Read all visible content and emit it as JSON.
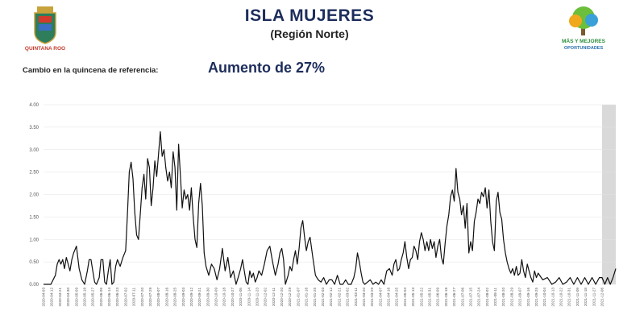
{
  "header": {
    "title": "ISLA MUJERES",
    "subtitle": "(Región Norte)",
    "change_label": "Cambio en la quincena de referencia:",
    "change_value": "Aumento de 27%",
    "logo_left_text": "QUINTANA ROO",
    "logo_right_line1": "MÁS Y MEJORES",
    "logo_right_line2": "OPORTUNIDADES"
  },
  "colors": {
    "title": "#1d2d5c",
    "line": "#111111",
    "grid": "#e3e3e3",
    "highlight": "#d9d9d9"
  },
  "chart_data": {
    "type": "line",
    "title": "",
    "xlabel": "",
    "ylabel": "",
    "ylim": [
      0,
      4
    ],
    "yticks": [
      "0.00",
      "0.50",
      "1.00",
      "1.50",
      "2.00",
      "2.50",
      "3.00",
      "3.50",
      "4.00"
    ],
    "grid": true,
    "x_start": "2020-04-03",
    "x_end": "2021-12-21",
    "x_ticks": [
      "2020-04-03",
      "2020-04-12",
      "2020-04-21",
      "2020-04-30",
      "2020-05-09",
      "2020-05-18",
      "2020-05-27",
      "2020-06-05",
      "2020-06-14",
      "2020-06-23",
      "2020-07-02",
      "2020-07-11",
      "2020-07-20",
      "2020-07-29",
      "2020-08-07",
      "2020-08-16",
      "2020-08-25",
      "2020-09-03",
      "2020-09-12",
      "2020-09-21",
      "2020-09-30",
      "2020-10-09",
      "2020-10-18",
      "2020-10-27",
      "2020-11-05",
      "2020-11-14",
      "2020-11-23",
      "2020-12-02",
      "2020-12-11",
      "2020-12-20",
      "2020-12-29",
      "2021-01-07",
      "2021-01-16",
      "2021-01-25",
      "2021-02-03",
      "2021-02-12",
      "2021-02-21",
      "2021-03-02",
      "2021-03-11",
      "2021-03-20",
      "2021-03-29",
      "2021-04-07",
      "2021-04-16",
      "2021-04-25",
      "2021-05-04",
      "2021-05-13",
      "2021-05-22",
      "2021-05-31",
      "2021-06-09",
      "2021-06-18",
      "2021-06-27",
      "2021-07-06",
      "2021-07-15",
      "2021-07-24",
      "2021-08-02",
      "2021-08-11",
      "2021-08-20",
      "2021-08-29",
      "2021-09-07",
      "2021-09-16",
      "2021-09-25",
      "2021-10-04",
      "2021-10-13",
      "2021-10-22",
      "2021-10-31",
      "2021-11-09",
      "2021-11-18",
      "2021-11-27",
      "2021-12-06"
    ],
    "highlight_range": [
      "2021-12-06",
      "2021-12-21"
    ],
    "series": [
      {
        "x": [
          "2020-04-03",
          "2020-04-11",
          "2020-04-16",
          "2020-04-18",
          "2020-04-20",
          "2020-04-22",
          "2020-04-24",
          "2020-04-26",
          "2020-04-28",
          "2020-04-30",
          "2020-05-02",
          "2020-05-04",
          "2020-05-06",
          "2020-05-09",
          "2020-05-12",
          "2020-05-15",
          "2020-05-18",
          "2020-05-21",
          "2020-05-23",
          "2020-05-25",
          "2020-05-27",
          "2020-05-29",
          "2020-05-31",
          "2020-06-03",
          "2020-06-05",
          "2020-06-07",
          "2020-06-09",
          "2020-06-11",
          "2020-06-13",
          "2020-06-15",
          "2020-06-17",
          "2020-06-19",
          "2020-06-21",
          "2020-06-23",
          "2020-06-26",
          "2020-06-29",
          "2020-07-02",
          "2020-07-04",
          "2020-07-06",
          "2020-07-08",
          "2020-07-10",
          "2020-07-12",
          "2020-07-14",
          "2020-07-16",
          "2020-07-18",
          "2020-07-20",
          "2020-07-22",
          "2020-07-24",
          "2020-07-26",
          "2020-07-28",
          "2020-07-30",
          "2020-08-01",
          "2020-08-03",
          "2020-08-05",
          "2020-08-07",
          "2020-08-09",
          "2020-08-11",
          "2020-08-13",
          "2020-08-15",
          "2020-08-17",
          "2020-08-19",
          "2020-08-21",
          "2020-08-23",
          "2020-08-25",
          "2020-08-27",
          "2020-08-29",
          "2020-08-31",
          "2020-09-02",
          "2020-09-04",
          "2020-09-06",
          "2020-09-08",
          "2020-09-10",
          "2020-09-12",
          "2020-09-14",
          "2020-09-16",
          "2020-09-18",
          "2020-09-20",
          "2020-09-22",
          "2020-09-24",
          "2020-09-26",
          "2020-09-28",
          "2020-10-01",
          "2020-10-04",
          "2020-10-07",
          "2020-10-10",
          "2020-10-13",
          "2020-10-16",
          "2020-10-19",
          "2020-10-22",
          "2020-10-25",
          "2020-10-28",
          "2020-10-31",
          "2020-11-03",
          "2020-11-05",
          "2020-11-07",
          "2020-11-09",
          "2020-11-11",
          "2020-11-13",
          "2020-11-15",
          "2020-11-17",
          "2020-11-19",
          "2020-11-21",
          "2020-11-23",
          "2020-11-25",
          "2020-11-28",
          "2020-12-01",
          "2020-12-04",
          "2020-12-07",
          "2020-12-10",
          "2020-12-13",
          "2020-12-16",
          "2020-12-18",
          "2020-12-20",
          "2020-12-22",
          "2020-12-24",
          "2020-12-27",
          "2020-12-29",
          "2020-12-31",
          "2021-01-02",
          "2021-01-04",
          "2021-01-06",
          "2021-01-08",
          "2021-01-10",
          "2021-01-12",
          "2021-01-14",
          "2021-01-16",
          "2021-01-18",
          "2021-01-20",
          "2021-01-23",
          "2021-01-26",
          "2021-01-29",
          "2021-02-01",
          "2021-02-04",
          "2021-02-07",
          "2021-02-10",
          "2021-02-13",
          "2021-02-16",
          "2021-02-19",
          "2021-02-22",
          "2021-02-25",
          "2021-02-28",
          "2021-03-03",
          "2021-03-06",
          "2021-03-09",
          "2021-03-11",
          "2021-03-13",
          "2021-03-15",
          "2021-03-17",
          "2021-03-19",
          "2021-03-21",
          "2021-03-24",
          "2021-03-27",
          "2021-03-30",
          "2021-04-02",
          "2021-04-05",
          "2021-04-08",
          "2021-04-11",
          "2021-04-14",
          "2021-04-17",
          "2021-04-20",
          "2021-04-22",
          "2021-04-24",
          "2021-04-26",
          "2021-04-28",
          "2021-04-30",
          "2021-05-02",
          "2021-05-04",
          "2021-05-06",
          "2021-05-08",
          "2021-05-10",
          "2021-05-12",
          "2021-05-14",
          "2021-05-16",
          "2021-05-18",
          "2021-05-20",
          "2021-05-22",
          "2021-05-24",
          "2021-05-26",
          "2021-05-28",
          "2021-05-30",
          "2021-06-01",
          "2021-06-03",
          "2021-06-05",
          "2021-06-07",
          "2021-06-09",
          "2021-06-11",
          "2021-06-13",
          "2021-06-15",
          "2021-06-17",
          "2021-06-19",
          "2021-06-21",
          "2021-06-23",
          "2021-06-25",
          "2021-06-27",
          "2021-06-29",
          "2021-07-01",
          "2021-07-03",
          "2021-07-05",
          "2021-07-07",
          "2021-07-09",
          "2021-07-11",
          "2021-07-13",
          "2021-07-15",
          "2021-07-17",
          "2021-07-19",
          "2021-07-21",
          "2021-07-23",
          "2021-07-25",
          "2021-07-27",
          "2021-07-29",
          "2021-07-31",
          "2021-08-02",
          "2021-08-04",
          "2021-08-06",
          "2021-08-08",
          "2021-08-10",
          "2021-08-12",
          "2021-08-14",
          "2021-08-16",
          "2021-08-18",
          "2021-08-20",
          "2021-08-22",
          "2021-08-24",
          "2021-08-26",
          "2021-08-28",
          "2021-08-30",
          "2021-09-01",
          "2021-09-03",
          "2021-09-05",
          "2021-09-07",
          "2021-09-09",
          "2021-09-11",
          "2021-09-13",
          "2021-09-15",
          "2021-09-17",
          "2021-09-19",
          "2021-09-21",
          "2021-09-23",
          "2021-09-25",
          "2021-09-27",
          "2021-10-02",
          "2021-10-07",
          "2021-10-12",
          "2021-10-16",
          "2021-10-20",
          "2021-10-24",
          "2021-10-28",
          "2021-11-01",
          "2021-11-05",
          "2021-11-09",
          "2021-11-13",
          "2021-11-17",
          "2021-11-21",
          "2021-11-25",
          "2021-11-29",
          "2021-12-03",
          "2021-12-06",
          "2021-12-09",
          "2021-12-12",
          "2021-12-15",
          "2021-12-18",
          "2021-12-21"
        ],
        "y": [
          0.0,
          0.0,
          0.2,
          0.45,
          0.55,
          0.45,
          0.55,
          0.35,
          0.6,
          0.45,
          0.3,
          0.55,
          0.7,
          0.85,
          0.35,
          0.1,
          0.0,
          0.3,
          0.55,
          0.55,
          0.3,
          0.05,
          0.0,
          0.15,
          0.55,
          0.55,
          0.05,
          0.0,
          0.3,
          0.55,
          0.0,
          0.05,
          0.4,
          0.55,
          0.4,
          0.6,
          0.75,
          1.6,
          2.5,
          2.72,
          2.35,
          1.6,
          1.1,
          1.0,
          1.55,
          2.15,
          2.45,
          1.9,
          2.8,
          2.6,
          1.75,
          2.15,
          2.75,
          2.4,
          2.9,
          3.4,
          2.85,
          3.0,
          2.6,
          2.3,
          2.5,
          2.15,
          2.95,
          2.6,
          1.65,
          3.12,
          2.4,
          1.7,
          2.1,
          1.9,
          2.0,
          1.65,
          2.15,
          1.5,
          1.0,
          0.82,
          1.8,
          2.25,
          1.75,
          0.7,
          0.4,
          0.2,
          0.45,
          0.35,
          0.1,
          0.35,
          0.8,
          0.3,
          0.6,
          0.15,
          0.3,
          0.0,
          0.2,
          0.35,
          0.55,
          0.3,
          0.05,
          0.0,
          0.3,
          0.15,
          0.25,
          0.05,
          0.15,
          0.3,
          0.2,
          0.45,
          0.75,
          0.85,
          0.5,
          0.2,
          0.45,
          0.7,
          0.8,
          0.55,
          0.0,
          0.2,
          0.4,
          0.3,
          0.55,
          0.75,
          0.45,
          0.8,
          1.25,
          1.42,
          1.05,
          0.75,
          0.95,
          1.05,
          0.6,
          0.2,
          0.1,
          0.05,
          0.15,
          0.0,
          0.1,
          0.1,
          0.0,
          0.2,
          0.0,
          0.0,
          0.1,
          0.0,
          0.0,
          0.15,
          0.35,
          0.7,
          0.5,
          0.25,
          0.05,
          0.0,
          0.05,
          0.1,
          0.0,
          0.05,
          0.0,
          0.1,
          0.0,
          0.3,
          0.35,
          0.2,
          0.45,
          0.55,
          0.3,
          0.35,
          0.55,
          0.7,
          0.95,
          0.6,
          0.35,
          0.55,
          0.6,
          0.85,
          0.75,
          0.55,
          0.95,
          1.15,
          1.0,
          0.75,
          0.95,
          0.75,
          1.0,
          0.8,
          0.95,
          0.6,
          0.85,
          1.0,
          0.6,
          0.45,
          0.9,
          1.3,
          1.55,
          1.95,
          2.1,
          1.85,
          2.58,
          2.05,
          1.9,
          1.55,
          1.75,
          1.25,
          1.8,
          0.7,
          0.95,
          0.75,
          1.4,
          1.6,
          1.9,
          1.8,
          2.05,
          1.95,
          2.15,
          1.7,
          2.1,
          1.4,
          0.95,
          0.75,
          1.85,
          2.05,
          1.6,
          1.45,
          1.0,
          0.7,
          0.5,
          0.35,
          0.25,
          0.35,
          0.2,
          0.4,
          0.2,
          0.25,
          0.55,
          0.3,
          0.15,
          0.45,
          0.3,
          0.15,
          0.05,
          0.3,
          0.15,
          0.25,
          0.1,
          0.15,
          0.0,
          0.05,
          0.15,
          0.0,
          0.05,
          0.15,
          0.0,
          0.15,
          0.0,
          0.15,
          0.0,
          0.15,
          0.0,
          0.15,
          0.15,
          0.0,
          0.15,
          0.0,
          0.15,
          0.35
        ]
      }
    ]
  }
}
